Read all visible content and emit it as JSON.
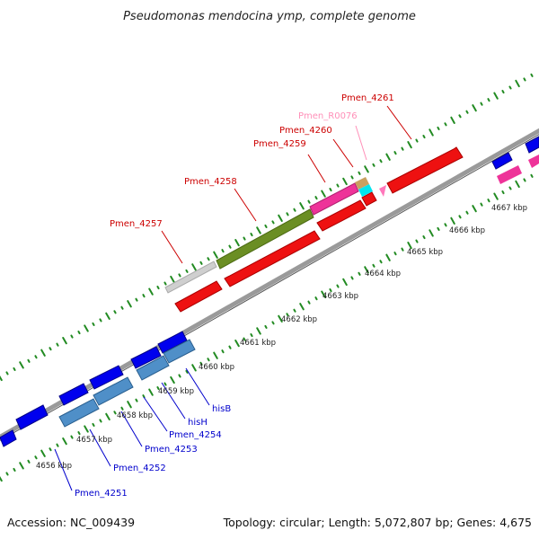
{
  "title": "Pseudomonas mendocina ymp, complete genome",
  "footer": {
    "accession": "Accession: NC_009439",
    "topology": "Topology: circular; Length: 5,072,807 bp; Genes: 4,675"
  },
  "colors": {
    "backbone": "#999999",
    "tick_green": "#228b22",
    "top_label": "#cc0000",
    "rna_label": "#ff8fb8",
    "bottom_label": "#0000cc"
  },
  "kbp_labels": [
    "4656 kbp",
    "4657 kbp",
    "4658 kbp",
    "4659 kbp",
    "4660 kbp",
    "4661 kbp",
    "4662 kbp",
    "4663 kbp",
    "4664 kbp",
    "4665 kbp",
    "4666 kbp",
    "4667 kbp"
  ],
  "top_labels": [
    "Pmen_4257",
    "Pmen_4258",
    "Pmen_4259",
    "Pmen_4260",
    "Pmen_R0076",
    "Pmen_4261"
  ],
  "bottom_labels": [
    "Pmen_4251",
    "Pmen_4252",
    "Pmen_4253",
    "Pmen_4254",
    "hisH",
    "hisB"
  ]
}
